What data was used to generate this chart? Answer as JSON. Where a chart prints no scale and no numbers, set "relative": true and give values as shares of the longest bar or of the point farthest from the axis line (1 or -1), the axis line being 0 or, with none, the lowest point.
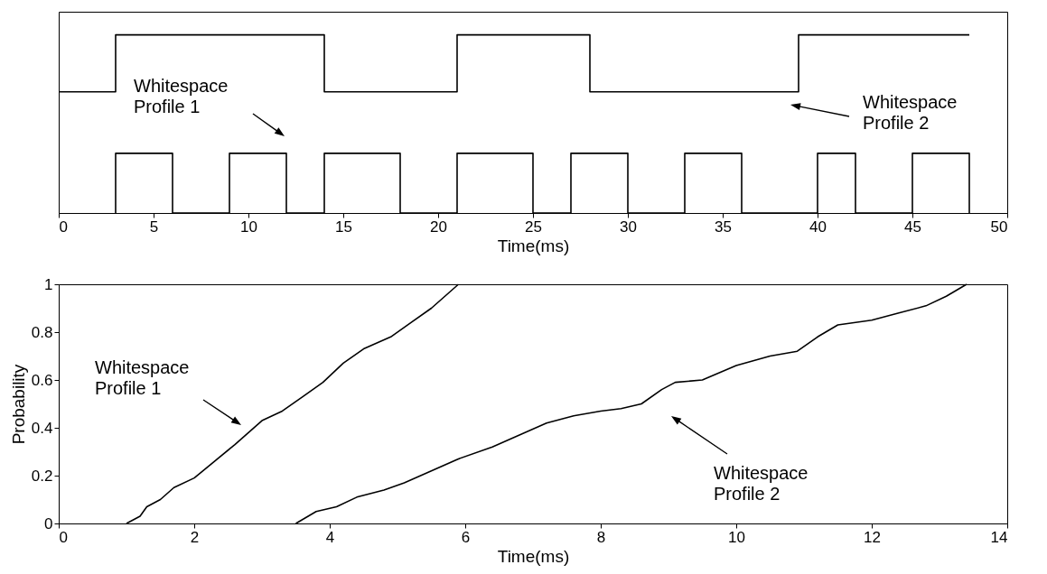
{
  "chart_data": [
    {
      "type": "step",
      "relative": true,
      "xlabel": "Time(ms)",
      "xlim": [
        0,
        50
      ],
      "xticks": [
        0,
        5,
        10,
        15,
        20,
        25,
        30,
        35,
        40,
        45,
        50
      ],
      "tick_labels": "x",
      "grid": false,
      "series": [
        {
          "color": "#000000",
          "x": [
            0,
            3,
            14,
            21,
            28,
            39,
            48
          ],
          "values": [
            0.68,
            1,
            0.68,
            1,
            0.68,
            1,
            1
          ]
        },
        {
          "color": "#000000",
          "x": [
            3,
            3,
            6,
            9,
            12,
            14,
            18,
            21,
            25,
            27,
            30,
            33,
            36,
            40,
            42,
            45,
            48,
            48
          ],
          "values": [
            0,
            0.335,
            0,
            0.335,
            0,
            0.335,
            0,
            0.335,
            0,
            0.335,
            0,
            0.335,
            0,
            0.335,
            0,
            0.335,
            0.335,
            0
          ]
        }
      ],
      "annotations": [
        "Whitespace\nProfile 1",
        "Whitespace\nProfile 2"
      ]
    },
    {
      "type": "line",
      "xlabel": "Time(ms)",
      "ylabel": "Probability",
      "xlim": [
        0,
        14
      ],
      "xticks": [
        0,
        2,
        4,
        6,
        8,
        10,
        12,
        14
      ],
      "ylim": [
        0,
        1
      ],
      "yticks": [
        0,
        0.2,
        0.4,
        0.6,
        0.8,
        1
      ],
      "grid": false,
      "series": [
        {
          "color": "#000000",
          "x": [
            1.0,
            1.2,
            1.3,
            1.5,
            1.7,
            2.0,
            2.3,
            2.6,
            2.8,
            3.0,
            3.3,
            3.6,
            3.9,
            4.2,
            4.5,
            4.9,
            5.2,
            5.5,
            5.7,
            5.9
          ],
          "values": [
            0,
            0.03,
            0.07,
            0.1,
            0.15,
            0.19,
            0.26,
            0.33,
            0.38,
            0.43,
            0.47,
            0.53,
            0.59,
            0.67,
            0.73,
            0.78,
            0.84,
            0.9,
            0.95,
            1.0
          ]
        },
        {
          "color": "#000000",
          "x": [
            3.5,
            3.8,
            4.1,
            4.4,
            4.8,
            5.1,
            5.5,
            5.9,
            6.4,
            6.8,
            7.2,
            7.6,
            8.0,
            8.3,
            8.6,
            8.9,
            9.1,
            9.5,
            10.0,
            10.5,
            10.9,
            11.2,
            11.5,
            12.0,
            12.4,
            12.8,
            13.1,
            13.4
          ],
          "values": [
            0,
            0.05,
            0.07,
            0.11,
            0.14,
            0.17,
            0.22,
            0.27,
            0.32,
            0.37,
            0.42,
            0.45,
            0.47,
            0.48,
            0.5,
            0.56,
            0.59,
            0.6,
            0.66,
            0.7,
            0.72,
            0.78,
            0.83,
            0.85,
            0.88,
            0.91,
            0.95,
            1.0
          ]
        }
      ],
      "annotations": [
        "Whitespace\nProfile 1",
        "Whitespace\nProfile 2"
      ]
    }
  ]
}
